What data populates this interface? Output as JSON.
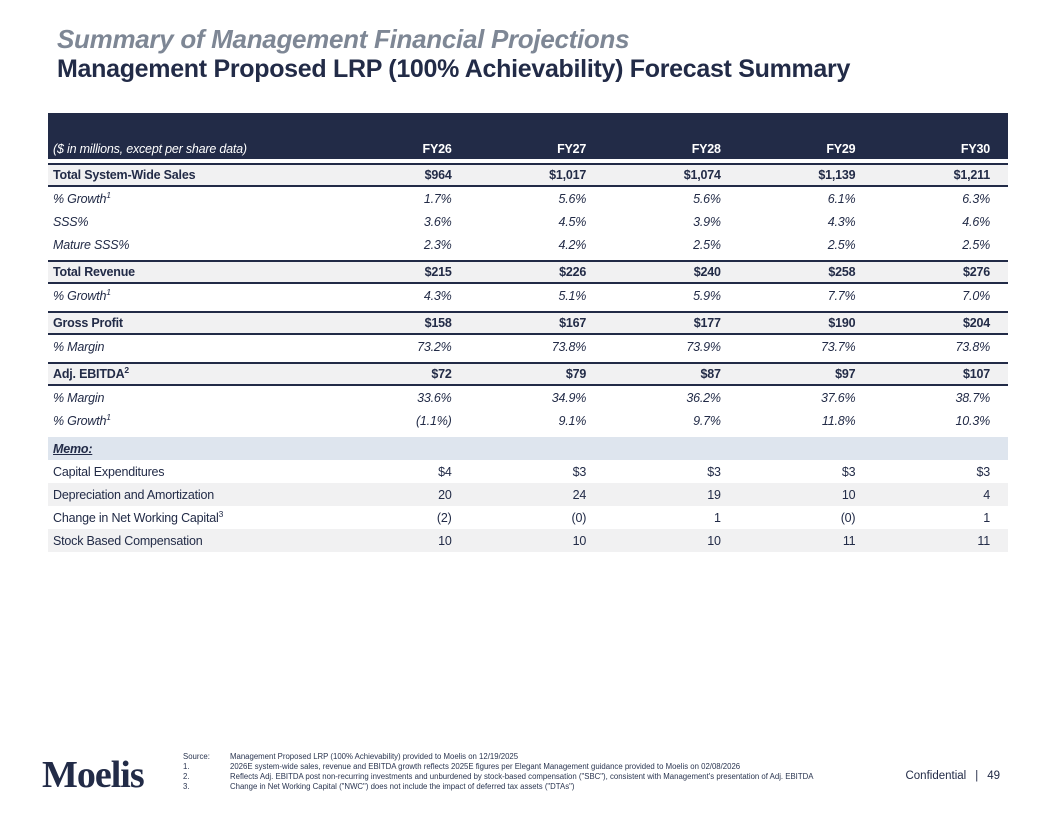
{
  "header": {
    "title": "Summary of Management Financial Projections",
    "subtitle": "Management Proposed LRP (100% Achievability) Forecast Summary"
  },
  "table": {
    "unit_label": "($ in millions, except per share data)",
    "columns": [
      "FY26",
      "FY27",
      "FY28",
      "FY29",
      "FY30"
    ],
    "rows": [
      {
        "type": "total",
        "label": "Total System-Wide Sales",
        "sup": "",
        "values": [
          "$964",
          "$1,017",
          "$1,074",
          "$1,139",
          "$1,211"
        ]
      },
      {
        "type": "sub",
        "label": "% Growth",
        "sup": "1",
        "values": [
          "1.7%",
          "5.6%",
          "5.6%",
          "6.1%",
          "6.3%"
        ]
      },
      {
        "type": "sub",
        "label": "SSS%",
        "sup": "",
        "values": [
          "3.6%",
          "4.5%",
          "3.9%",
          "4.3%",
          "4.6%"
        ]
      },
      {
        "type": "sub",
        "label": "Mature SSS%",
        "sup": "",
        "values": [
          "2.3%",
          "4.2%",
          "2.5%",
          "2.5%",
          "2.5%"
        ]
      },
      {
        "type": "total",
        "label": "Total Revenue",
        "sup": "",
        "values": [
          "$215",
          "$226",
          "$240",
          "$258",
          "$276"
        ]
      },
      {
        "type": "sub",
        "label": "% Growth",
        "sup": "1",
        "values": [
          "4.3%",
          "5.1%",
          "5.9%",
          "7.7%",
          "7.0%"
        ]
      },
      {
        "type": "total",
        "label": "Gross Profit",
        "sup": "",
        "values": [
          "$158",
          "$167",
          "$177",
          "$190",
          "$204"
        ]
      },
      {
        "type": "sub",
        "label": "% Margin",
        "sup": "",
        "values": [
          "73.2%",
          "73.8%",
          "73.9%",
          "73.7%",
          "73.8%"
        ]
      },
      {
        "type": "total",
        "label": "Adj. EBITDA",
        "sup": "2",
        "values": [
          "$72",
          "$79",
          "$87",
          "$97",
          "$107"
        ]
      },
      {
        "type": "sub",
        "label": "% Margin",
        "sup": "",
        "values": [
          "33.6%",
          "34.9%",
          "36.2%",
          "37.6%",
          "38.7%"
        ]
      },
      {
        "type": "sub",
        "label": "% Growth",
        "sup": "1",
        "values": [
          "(1.1%)",
          "9.1%",
          "9.7%",
          "11.8%",
          "10.3%"
        ]
      },
      {
        "type": "memo-header",
        "label": "Memo:",
        "sup": "",
        "values": [
          "",
          "",
          "",
          "",
          ""
        ]
      },
      {
        "type": "memo",
        "label": "Capital Expenditures",
        "sup": "",
        "values": [
          "$4",
          "$3",
          "$3",
          "$3",
          "$3"
        ]
      },
      {
        "type": "memo shaded",
        "label": "Depreciation and Amortization",
        "sup": "",
        "values": [
          "20",
          "24",
          "19",
          "10",
          "4"
        ]
      },
      {
        "type": "memo",
        "label": "Change in Net Working Capital",
        "sup": "3",
        "values": [
          "(2)",
          "(0)",
          "1",
          "(0)",
          "1"
        ]
      },
      {
        "type": "memo shaded",
        "label": "Stock Based Compensation",
        "sup": "",
        "values": [
          "10",
          "10",
          "10",
          "11",
          "11"
        ]
      }
    ]
  },
  "footer": {
    "logo": "Moelis",
    "source_label": "Source:",
    "source_text": "Management Proposed LRP (100% Achievability) provided to Moelis on 12/19/2025",
    "footnotes": [
      {
        "num": "1.",
        "text": "2026E system-wide sales, revenue and EBITDA growth reflects 2025E figures per Elegant Management guidance provided to Moelis on 02/08/2026"
      },
      {
        "num": "2.",
        "text": "Reflects Adj. EBITDA post non-recurring investments and unburdened by stock-based compensation (\"SBC\"), consistent with Management's presentation of Adj. EBITDA"
      },
      {
        "num": "3.",
        "text": "Change in Net Working Capital (\"NWC\") does not include the impact of deferred tax assets (\"DTAs\")"
      }
    ],
    "confidential": "Confidential",
    "separator": "|",
    "page_number": "49"
  },
  "colors": {
    "navy": "#222b47",
    "band_gray": "#f1f1f2",
    "memo_blue": "#dee5ee",
    "title_gray": "#7e8795",
    "note_navy": "#2a3550"
  }
}
